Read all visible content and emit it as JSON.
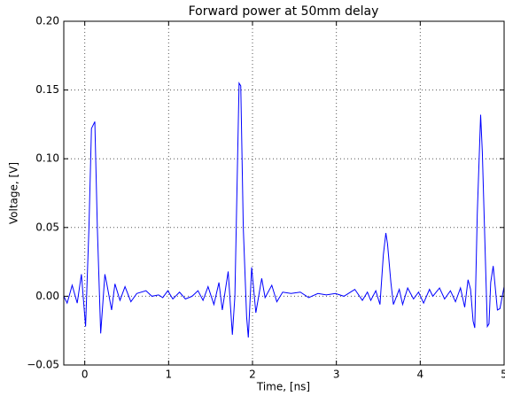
{
  "chart_data": {
    "type": "line",
    "title": "Forward power at 50mm delay",
    "x_label": "Time, [ns]",
    "y_label": "Voltage, [V]",
    "color": "#0000ff",
    "grid": true,
    "xlim": [
      -0.25,
      5
    ],
    "ylim": [
      -0.05,
      0.2
    ],
    "xticks": [
      0,
      1,
      2,
      3,
      4,
      5
    ],
    "yticks": [
      {
        "value": -0.05,
        "label": "−0.05"
      },
      {
        "value": 0,
        "label": "0.00"
      },
      {
        "value": 0.05,
        "label": "0.05"
      },
      {
        "value": 0.1,
        "label": "0.10"
      },
      {
        "value": 0.15,
        "label": "0.15"
      },
      {
        "value": 0.2,
        "label": "0.20"
      }
    ],
    "x": [
      -0.25,
      -0.21,
      -0.15,
      -0.09,
      -0.04,
      0.01,
      0.05,
      0.08,
      0.12,
      0.15,
      0.19,
      0.24,
      0.26,
      0.32,
      0.36,
      0.42,
      0.48,
      0.55,
      0.62,
      0.73,
      0.8,
      0.88,
      0.93,
      0.99,
      1.05,
      1.13,
      1.2,
      1.28,
      1.35,
      1.41,
      1.47,
      1.54,
      1.6,
      1.64,
      1.71,
      1.76,
      1.79,
      1.84,
      1.86,
      1.89,
      1.93,
      1.95,
      1.99,
      2.04,
      2.11,
      2.15,
      2.23,
      2.29,
      2.36,
      2.46,
      2.57,
      2.67,
      2.78,
      2.88,
      2.99,
      3.09,
      3.22,
      3.31,
      3.37,
      3.41,
      3.47,
      3.52,
      3.56,
      3.59,
      3.61,
      3.65,
      3.68,
      3.75,
      3.79,
      3.85,
      3.92,
      3.98,
      4.04,
      4.11,
      4.15,
      4.23,
      4.29,
      4.36,
      4.42,
      4.48,
      4.53,
      4.57,
      4.6,
      4.63,
      4.65,
      4.68,
      4.72,
      4.74,
      4.78,
      4.8,
      4.82,
      4.84,
      4.87,
      4.92,
      4.95,
      5.0
    ],
    "values": [
      0.0,
      -0.005,
      0.008,
      -0.005,
      0.016,
      -0.022,
      0.05,
      0.122,
      0.127,
      0.05,
      -0.027,
      0.016,
      0.01,
      -0.01,
      0.009,
      -0.003,
      0.007,
      -0.004,
      0.002,
      0.004,
      0.0,
      0.001,
      -0.001,
      0.004,
      -0.002,
      0.003,
      -0.002,
      0.0,
      0.004,
      -0.003,
      0.007,
      -0.006,
      0.01,
      -0.01,
      0.018,
      -0.028,
      0.0,
      0.155,
      0.153,
      0.05,
      -0.015,
      -0.03,
      0.021,
      -0.012,
      0.013,
      -0.001,
      0.008,
      -0.004,
      0.003,
      0.002,
      0.003,
      -0.001,
      0.002,
      0.001,
      0.002,
      0.0,
      0.005,
      -0.003,
      0.003,
      -0.003,
      0.004,
      -0.006,
      0.03,
      0.046,
      0.038,
      0.01,
      -0.006,
      0.005,
      -0.006,
      0.006,
      -0.002,
      0.003,
      -0.005,
      0.005,
      0.0,
      0.006,
      -0.002,
      0.004,
      -0.004,
      0.006,
      -0.008,
      0.012,
      0.005,
      -0.018,
      -0.023,
      0.06,
      0.132,
      0.105,
      0.02,
      -0.022,
      -0.02,
      0.01,
      0.022,
      -0.01,
      -0.009,
      0.007
    ]
  }
}
